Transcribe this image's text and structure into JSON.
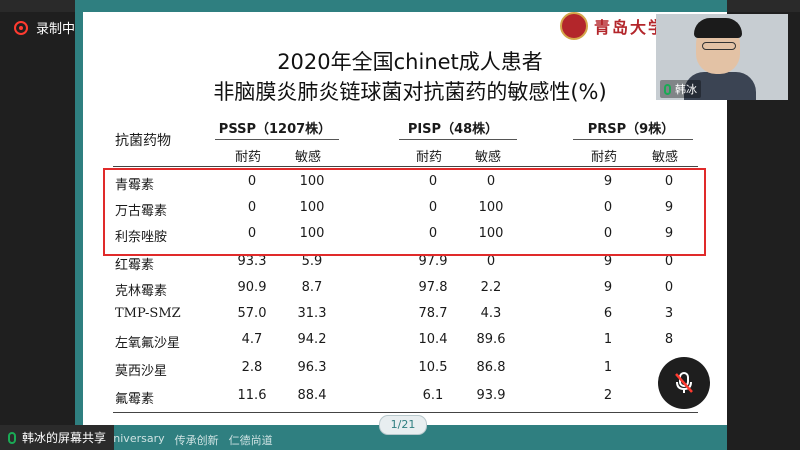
{
  "recording": {
    "label": "录制中"
  },
  "logo": {
    "text": "青岛大学医"
  },
  "slide": {
    "title_line1": "2020年全国chinet成人患者",
    "title_line2": "非脑膜炎肺炎链球菌对抗菌药的敏感性(%)",
    "page_indicator": "1/21",
    "footer_items": [
      "th Anniversary",
      "传承创新",
      "仁德尚道"
    ]
  },
  "table": {
    "drug_header": "抗菌药物",
    "groups": [
      {
        "label": "PSSP（1207株）",
        "sub": [
          "耐药",
          "敏感"
        ]
      },
      {
        "label": "PISP（48株）",
        "sub": [
          "耐药",
          "敏感"
        ]
      },
      {
        "label": "PRSP（9株）",
        "sub": [
          "耐药",
          "敏感"
        ]
      }
    ],
    "rows": [
      {
        "drug": "青霉素",
        "values": [
          "0",
          "100",
          "0",
          "0",
          "9",
          "0"
        ]
      },
      {
        "drug": "万古霉素",
        "values": [
          "0",
          "100",
          "0",
          "100",
          "0",
          "9"
        ]
      },
      {
        "drug": "利奈唑胺",
        "values": [
          "0",
          "100",
          "0",
          "100",
          "0",
          "9"
        ]
      },
      {
        "drug": "红霉素",
        "values": [
          "93.3",
          "5.9",
          "97.9",
          "0",
          "9",
          "0"
        ]
      },
      {
        "drug": "克林霉素",
        "values": [
          "90.9",
          "8.7",
          "97.8",
          "2.2",
          "9",
          "0"
        ]
      },
      {
        "drug": "TMP-SMZ",
        "values": [
          "57.0",
          "31.3",
          "78.7",
          "4.3",
          "6",
          "3"
        ]
      },
      {
        "drug": "左氧氟沙星",
        "values": [
          "4.7",
          "94.2",
          "10.4",
          "89.6",
          "1",
          "8"
        ]
      },
      {
        "drug": "莫西沙星",
        "values": [
          "2.8",
          "96.3",
          "10.5",
          "86.8",
          "1",
          ""
        ]
      },
      {
        "drug": "氟霉素",
        "values": [
          "11.6",
          "88.4",
          "6.1",
          "93.9",
          "2",
          ""
        ]
      }
    ],
    "highlight_color": "#e02a2a"
  },
  "screen_share": {
    "label": "韩冰的屏幕共享"
  },
  "participant": {
    "name": "韩冰"
  },
  "icons": {
    "record": "record-icon",
    "mic": "mic-icon",
    "mute": "mic-muted-icon"
  },
  "colors": {
    "theme": "#2f7f80",
    "accent": "#e02a2a"
  }
}
